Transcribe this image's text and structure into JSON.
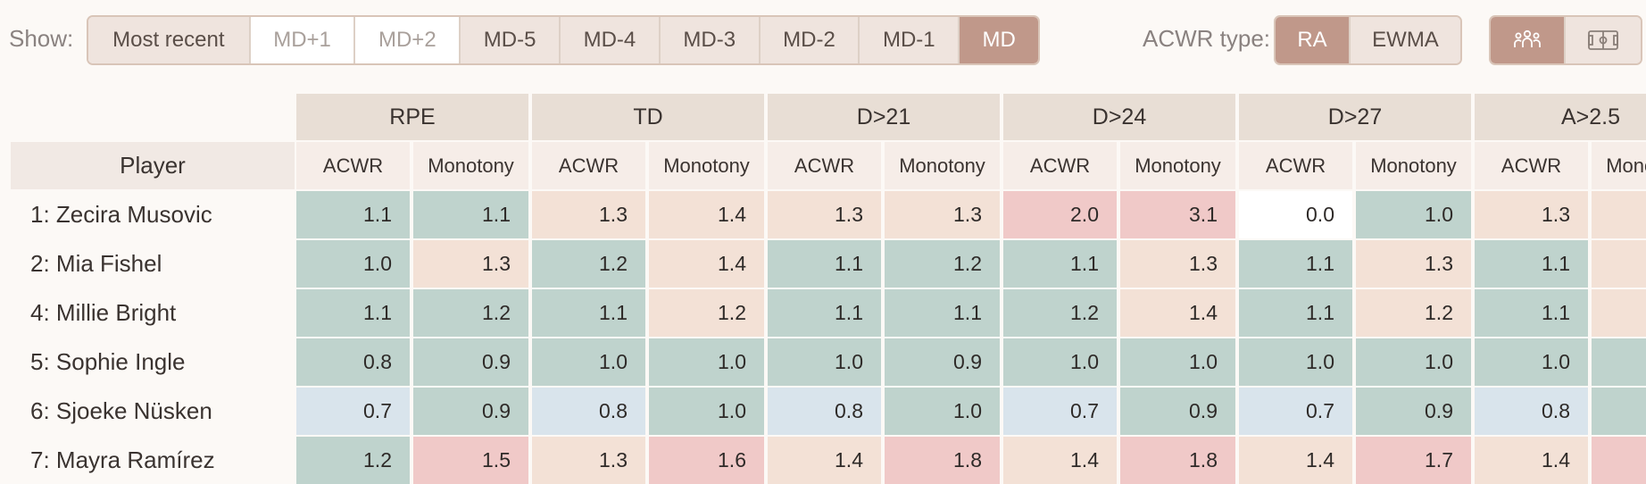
{
  "toolbar": {
    "show_label": "Show:",
    "md_options": [
      {
        "label": "Most recent",
        "state": "on"
      },
      {
        "label": "MD+1",
        "state": "off"
      },
      {
        "label": "MD+2",
        "state": "off"
      },
      {
        "label": "MD-5",
        "state": "on"
      },
      {
        "label": "MD-4",
        "state": "on"
      },
      {
        "label": "MD-3",
        "state": "on"
      },
      {
        "label": "MD-2",
        "state": "on"
      },
      {
        "label": "MD-1",
        "state": "on"
      },
      {
        "label": "MD",
        "state": "selected"
      }
    ],
    "acwr_label": "ACWR type:",
    "acwr_options": [
      {
        "label": "RA",
        "state": "selected"
      },
      {
        "label": "EWMA",
        "state": "on"
      }
    ],
    "view_options": [
      {
        "icon": "team-icon",
        "state": "selected"
      },
      {
        "icon": "pitch-icon",
        "state": "on"
      }
    ]
  },
  "table": {
    "player_header": "Player",
    "groups": [
      "RPE",
      "TD",
      "D>21",
      "D>24",
      "D>27",
      "A>2.5"
    ],
    "sub_headers": [
      "ACWR",
      "Monotony"
    ],
    "colors": {
      "green": "#bfd3cd",
      "peach": "#f3e1d6",
      "pink": "#f0c9c8",
      "blue": "#d9e4ec",
      "white": "#ffffff"
    },
    "rows": [
      {
        "player": "1: Zecira Musovic",
        "values": [
          "1.1",
          "1.1",
          "1.3",
          "1.4",
          "1.3",
          "1.3",
          "2.0",
          "3.1",
          "0.0",
          "1.0",
          "1.3",
          ""
        ],
        "colors": [
          "green",
          "green",
          "peach",
          "peach",
          "peach",
          "peach",
          "pink",
          "pink",
          "white",
          "green",
          "peach",
          "peach"
        ]
      },
      {
        "player": "2: Mia Fishel",
        "values": [
          "1.0",
          "1.3",
          "1.2",
          "1.4",
          "1.1",
          "1.2",
          "1.1",
          "1.3",
          "1.1",
          "1.3",
          "1.1",
          ""
        ],
        "colors": [
          "green",
          "peach",
          "green",
          "peach",
          "green",
          "green",
          "green",
          "peach",
          "green",
          "peach",
          "green",
          "peach"
        ]
      },
      {
        "player": "4: Millie Bright",
        "values": [
          "1.1",
          "1.2",
          "1.1",
          "1.2",
          "1.1",
          "1.1",
          "1.2",
          "1.4",
          "1.1",
          "1.2",
          "1.1",
          ""
        ],
        "colors": [
          "green",
          "green",
          "green",
          "peach",
          "green",
          "green",
          "green",
          "peach",
          "green",
          "peach",
          "green",
          "peach"
        ]
      },
      {
        "player": "5: Sophie Ingle",
        "values": [
          "0.8",
          "0.9",
          "1.0",
          "1.0",
          "1.0",
          "0.9",
          "1.0",
          "1.0",
          "1.0",
          "1.0",
          "1.0",
          ""
        ],
        "colors": [
          "green",
          "green",
          "green",
          "green",
          "green",
          "green",
          "green",
          "green",
          "green",
          "green",
          "green",
          "green"
        ]
      },
      {
        "player": "6: Sjoeke Nüsken",
        "values": [
          "0.7",
          "0.9",
          "0.8",
          "1.0",
          "0.8",
          "1.0",
          "0.7",
          "0.9",
          "0.7",
          "0.9",
          "0.8",
          ""
        ],
        "colors": [
          "blue",
          "green",
          "blue",
          "green",
          "blue",
          "green",
          "blue",
          "green",
          "blue",
          "green",
          "blue",
          "green"
        ]
      },
      {
        "player": "7: Mayra Ramírez",
        "values": [
          "1.2",
          "1.5",
          "1.3",
          "1.6",
          "1.4",
          "1.8",
          "1.4",
          "1.8",
          "1.4",
          "1.7",
          "1.4",
          ""
        ],
        "colors": [
          "green",
          "pink",
          "peach",
          "pink",
          "peach",
          "pink",
          "peach",
          "pink",
          "peach",
          "pink",
          "peach",
          "pink"
        ]
      }
    ]
  }
}
